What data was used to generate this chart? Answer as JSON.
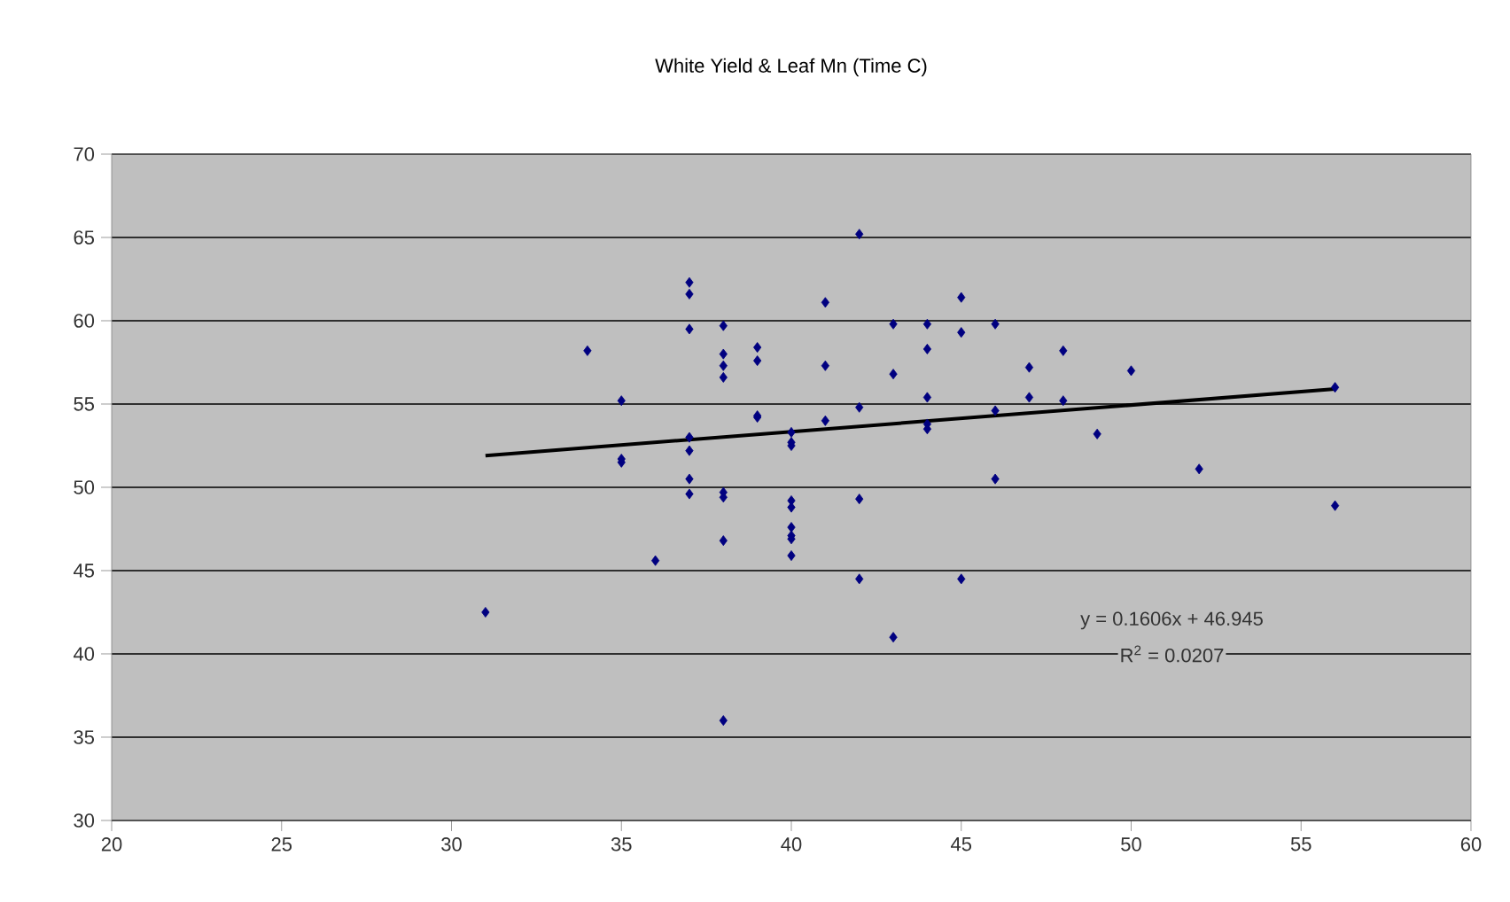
{
  "chart_data": {
    "type": "scatter",
    "title": "White Yield & Leaf Mn (Time C)",
    "series": [
      {
        "color": "#000080",
        "marker": "diamond",
        "x": [
          31,
          34,
          35,
          35,
          35,
          36,
          37,
          37,
          37,
          37,
          37,
          37,
          37,
          38,
          38,
          38,
          38,
          38,
          38,
          38,
          38,
          39,
          39,
          39,
          39,
          40,
          40,
          40,
          40,
          40,
          40,
          40,
          40,
          40,
          41,
          41,
          41,
          42,
          42,
          42,
          42,
          43,
          43,
          43,
          44,
          44,
          44,
          44,
          44,
          45,
          45,
          45,
          46,
          46,
          46,
          47,
          47,
          48,
          48,
          49,
          50,
          52,
          56,
          56
        ],
        "values": [
          42.5,
          58.2,
          55.2,
          51.7,
          51.5,
          45.6,
          62.3,
          61.6,
          59.5,
          53.0,
          52.2,
          50.5,
          49.6,
          59.7,
          58.0,
          57.3,
          56.6,
          49.7,
          49.4,
          46.8,
          36.0,
          58.4,
          57.6,
          54.3,
          54.2,
          53.3,
          52.7,
          52.5,
          49.2,
          48.8,
          47.6,
          47.1,
          46.9,
          45.9,
          61.1,
          57.3,
          54.0,
          65.2,
          54.8,
          49.3,
          44.5,
          59.8,
          56.8,
          41.0,
          59.8,
          58.3,
          55.4,
          53.8,
          53.5,
          61.4,
          59.3,
          44.5,
          59.8,
          54.6,
          50.5,
          57.2,
          55.4,
          58.2,
          55.2,
          53.2,
          57.0,
          51.1,
          56.0,
          48.9
        ]
      },
      {
        "type": "line",
        "color": "#000000",
        "marker": "none",
        "x": [
          31,
          56
        ],
        "values": [
          51.9,
          55.9
        ]
      }
    ],
    "xlim": [
      20,
      60
    ],
    "xticks": [
      20,
      25,
      30,
      35,
      40,
      45,
      50,
      55,
      60
    ],
    "ylim": [
      30,
      70
    ],
    "yticks": [
      30,
      35,
      40,
      45,
      50,
      55,
      60,
      65,
      70
    ],
    "grid": "y",
    "annotations": [
      "y = 0.1606x + 46.945",
      "R$^{2}$ = 0.0207"
    ]
  }
}
